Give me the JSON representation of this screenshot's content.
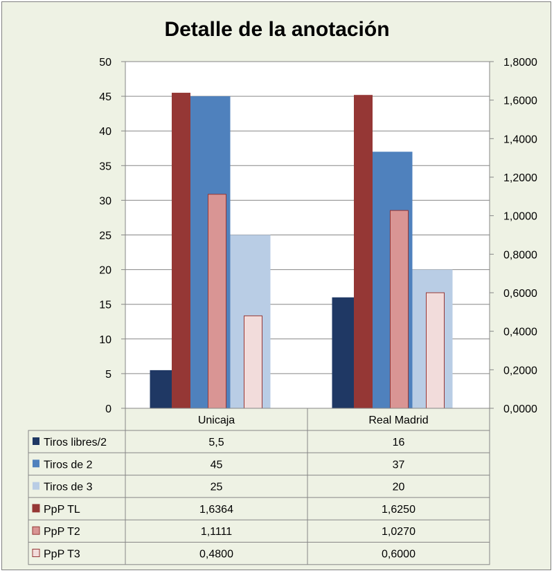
{
  "chart_data": {
    "type": "bar",
    "title": "Detalle de la anotación",
    "categories": [
      "Unicaja",
      "Real Madrid"
    ],
    "y_left": {
      "min": 0,
      "max": 50,
      "step": 5,
      "ticks": [
        "0",
        "5",
        "10",
        "15",
        "20",
        "25",
        "30",
        "35",
        "40",
        "45",
        "50"
      ]
    },
    "y_right": {
      "min": 0,
      "max": 1.8,
      "step": 0.2,
      "ticks": [
        "0,0000",
        "0,2000",
        "0,4000",
        "0,6000",
        "0,8000",
        "1,0000",
        "1,2000",
        "1,4000",
        "1,6000",
        "1,8000"
      ]
    },
    "grid": true,
    "series": [
      {
        "name": "Tiros libres/2",
        "axis": "left",
        "color": "#1f3864",
        "values": [
          5.5,
          16
        ],
        "labels": [
          "5,5",
          "16"
        ]
      },
      {
        "name": "Tiros de 2",
        "axis": "left",
        "color": "#4f81bd",
        "values": [
          45,
          37
        ],
        "labels": [
          "45",
          "37"
        ]
      },
      {
        "name": "Tiros de 3",
        "axis": "left",
        "color": "#b9cde5",
        "values": [
          25,
          20
        ],
        "labels": [
          "25",
          "20"
        ]
      },
      {
        "name": "PpP TL",
        "axis": "right",
        "color": "#953735",
        "values": [
          1.6364,
          1.625
        ],
        "labels": [
          "1,6364",
          "1,6250"
        ]
      },
      {
        "name": "PpP T2",
        "axis": "right",
        "color": "#d99594",
        "values": [
          1.1111,
          1.027
        ],
        "labels": [
          "1,1111",
          "1,0270"
        ]
      },
      {
        "name": "PpP T3",
        "axis": "right",
        "color": "#f2dcdb",
        "values": [
          0.48,
          0.6
        ],
        "labels": [
          "0,4800",
          "0,6000"
        ]
      }
    ],
    "legend": "data-table-bottom"
  }
}
